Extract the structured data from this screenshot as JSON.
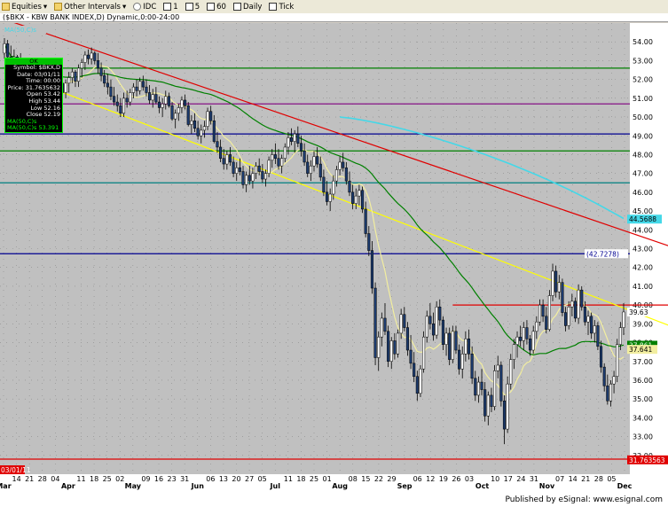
{
  "toolbar": {
    "equities": "Equities",
    "other_intervals": "Other Intervals",
    "idc": "IDC",
    "i1": "1",
    "i5": "5",
    "i60": "60",
    "daily": "Daily",
    "tick": "Tick"
  },
  "title_line": "($BKX - KBW BANK INDEX,D) Dynamic,0:00-24:00",
  "legend_tag": "MA(50,C)s",
  "info_box": {
    "header": "OK",
    "symbol": "Symbol: $BKX,D",
    "date": "Date: 03/01/11",
    "time": "Time: 00:00",
    "price": "Price: 31.7635632",
    "open": "Open 53.42",
    "high": "High 53.44",
    "low": "Low 52.16",
    "close": "Close 52.19",
    "ma_label": "MA(50,C)s",
    "ma_value": "MA(50,C)s 53.391"
  },
  "footer": "Published by eSignal: www.esignal.com",
  "colors": {
    "bg": "#c0c0c0",
    "up": "#ffffff",
    "down": "#1c3b6e",
    "ma_green": "#008000",
    "ma_yellow": "#f2eea0",
    "ma_cyan": "#44d8e8",
    "trend_red": "#e00000",
    "trend_yellow": "#ffff00",
    "level_blue": "#000090"
  },
  "chart_data": {
    "type": "candlestick",
    "ylim": [
      31,
      55
    ],
    "y_ticks": [
      "32.00",
      "33.00",
      "34.00",
      "35.00",
      "36.00",
      "37.00",
      "38.00",
      "39.00",
      "40.00",
      "41.00",
      "42.00",
      "43.00",
      "44.00",
      "45.00",
      "46.00",
      "47.00",
      "48.00",
      "49.00",
      "50.00",
      "51.00",
      "52.00",
      "53.00",
      "54.00"
    ],
    "x_labels": [
      "Mar",
      "14",
      "21",
      "28",
      "04",
      "Apr",
      "11",
      "18",
      "25",
      "02",
      "May",
      "09",
      "16",
      "23",
      "31",
      "Jun",
      "06",
      "13",
      "20",
      "27",
      "05",
      "Jul",
      "11",
      "18",
      "25",
      "01",
      "Aug",
      "08",
      "15",
      "22",
      "29",
      "Sep",
      "06",
      "12",
      "19",
      "26",
      "03",
      "Oct",
      "10",
      "17",
      "24",
      "31",
      "Nov",
      "07",
      "14",
      "21",
      "28",
      "05",
      "Dec"
    ],
    "month_labels": [
      "Mar",
      "Apr",
      "May",
      "Jun",
      "Jul",
      "Aug",
      "Sep",
      "Oct",
      "Nov",
      "Dec"
    ],
    "left_date_label": "03/01/11",
    "price_tags": [
      {
        "value": "44.5688",
        "color": "#44d8e8"
      },
      {
        "value": "(42.7278)",
        "color": "#000090"
      },
      {
        "value": "39.63",
        "color": "#ffffff"
      },
      {
        "value": "37.861",
        "color": "#008000"
      },
      {
        "value": "37.641",
        "color": "#f2eea0"
      },
      {
        "value": "31.763563",
        "color": "#e00000"
      }
    ],
    "horizontal_levels": [
      {
        "value": 52.6,
        "color": "#008000"
      },
      {
        "value": 50.7,
        "color": "#800080"
      },
      {
        "value": 49.1,
        "color": "#000090"
      },
      {
        "value": 48.2,
        "color": "#008000"
      },
      {
        "value": 46.5,
        "color": "#008080"
      },
      {
        "value": 42.7278,
        "color": "#000090"
      },
      {
        "value": 31.8,
        "color": "#e00000"
      }
    ],
    "red_segment": {
      "value": 40.0,
      "from_index": 139,
      "to_index": 227
    },
    "trendlines": [
      {
        "name": "red",
        "from": [
          0,
          55.2
        ],
        "to": [
          229,
          41.8
        ]
      },
      {
        "name": "yellow",
        "from": [
          0,
          52.5
        ],
        "to": [
          229,
          37.4
        ]
      }
    ],
    "ohlc": [
      [
        53.4,
        54.2,
        53.1,
        53.9
      ],
      [
        53.9,
        54.1,
        52.7,
        53.2
      ],
      [
        53.2,
        53.8,
        52.4,
        52.6
      ],
      [
        52.6,
        53.6,
        52.3,
        53.2
      ],
      [
        53.2,
        53.3,
        52.0,
        52.2
      ],
      [
        52.2,
        53.4,
        51.8,
        52.8
      ],
      [
        52.8,
        53.0,
        51.6,
        51.9
      ],
      [
        51.9,
        52.3,
        51.2,
        51.5
      ],
      [
        51.5,
        52.2,
        51.1,
        51.8
      ],
      [
        51.8,
        52.3,
        51.3,
        51.4
      ],
      [
        51.4,
        52.0,
        51.1,
        51.8
      ],
      [
        51.8,
        52.2,
        51.2,
        51.4
      ],
      [
        51.4,
        52.5,
        51.2,
        52.3
      ],
      [
        52.3,
        52.4,
        51.4,
        51.6
      ],
      [
        51.6,
        52.2,
        51.1,
        52.0
      ],
      [
        52.0,
        52.5,
        51.5,
        51.7
      ],
      [
        51.7,
        52.3,
        51.3,
        52.2
      ],
      [
        52.2,
        52.6,
        51.6,
        51.8
      ],
      [
        51.8,
        52.1,
        51.1,
        51.3
      ],
      [
        51.3,
        52.0,
        51.0,
        51.8
      ],
      [
        51.8,
        52.4,
        51.3,
        52.1
      ],
      [
        52.1,
        52.6,
        51.8,
        52.4
      ],
      [
        52.4,
        52.5,
        51.6,
        51.9
      ],
      [
        51.9,
        52.8,
        51.6,
        52.6
      ],
      [
        52.6,
        53.1,
        52.1,
        52.9
      ],
      [
        52.9,
        53.5,
        52.5,
        53.3
      ],
      [
        53.3,
        53.6,
        52.8,
        53.1
      ],
      [
        53.1,
        53.7,
        52.8,
        53.4
      ],
      [
        53.4,
        53.5,
        52.8,
        53.0
      ],
      [
        53.0,
        53.4,
        52.3,
        52.6
      ],
      [
        52.6,
        52.9,
        51.9,
        52.2
      ],
      [
        52.2,
        52.5,
        51.6,
        51.8
      ],
      [
        51.8,
        52.3,
        51.2,
        51.6
      ],
      [
        51.6,
        52.0,
        50.9,
        51.1
      ],
      [
        51.1,
        51.6,
        50.6,
        50.8
      ],
      [
        50.8,
        51.2,
        50.3,
        50.6
      ],
      [
        50.6,
        51.0,
        50.0,
        50.2
      ],
      [
        50.2,
        51.3,
        50.0,
        51.0
      ],
      [
        51.0,
        51.4,
        50.5,
        50.8
      ],
      [
        50.8,
        51.5,
        50.6,
        51.3
      ],
      [
        51.3,
        51.8,
        51.0,
        51.6
      ],
      [
        51.6,
        52.0,
        51.1,
        51.4
      ],
      [
        51.4,
        52.1,
        51.2,
        51.9
      ],
      [
        51.9,
        52.2,
        51.4,
        51.6
      ],
      [
        51.6,
        52.0,
        51.1,
        51.3
      ],
      [
        51.3,
        51.7,
        50.7,
        50.9
      ],
      [
        50.9,
        51.5,
        50.5,
        51.2
      ],
      [
        51.2,
        51.6,
        50.7,
        50.8
      ],
      [
        50.8,
        51.1,
        50.2,
        50.5
      ],
      [
        50.5,
        51.0,
        50.0,
        50.7
      ],
      [
        50.7,
        51.4,
        50.4,
        51.1
      ],
      [
        51.1,
        51.3,
        50.5,
        50.6
      ],
      [
        50.6,
        50.8,
        49.8,
        49.9
      ],
      [
        49.9,
        50.4,
        49.4,
        50.2
      ],
      [
        50.2,
        50.7,
        49.8,
        50.5
      ],
      [
        50.5,
        51.1,
        50.2,
        50.9
      ],
      [
        50.9,
        51.2,
        50.4,
        50.6
      ],
      [
        50.6,
        50.8,
        49.5,
        49.6
      ],
      [
        49.6,
        50.1,
        49.1,
        49.8
      ],
      [
        49.8,
        50.2,
        49.2,
        49.4
      ],
      [
        49.4,
        49.8,
        48.8,
        49.0
      ],
      [
        49.0,
        49.6,
        48.6,
        49.3
      ],
      [
        49.3,
        49.8,
        48.9,
        49.5
      ],
      [
        49.5,
        50.5,
        49.3,
        50.3
      ],
      [
        50.3,
        50.6,
        49.6,
        49.8
      ],
      [
        49.8,
        50.1,
        48.6,
        48.7
      ],
      [
        48.7,
        49.2,
        48.1,
        48.4
      ],
      [
        48.4,
        48.8,
        47.6,
        47.8
      ],
      [
        47.8,
        48.3,
        47.2,
        47.5
      ],
      [
        47.5,
        48.2,
        47.2,
        48.0
      ],
      [
        48.0,
        48.4,
        47.4,
        47.6
      ],
      [
        47.6,
        47.9,
        46.8,
        47.0
      ],
      [
        47.0,
        47.6,
        46.6,
        47.3
      ],
      [
        47.3,
        47.8,
        46.9,
        47.1
      ],
      [
        47.1,
        47.4,
        46.2,
        46.4
      ],
      [
        46.4,
        47.1,
        46.0,
        46.9
      ],
      [
        46.9,
        47.4,
        46.4,
        46.6
      ],
      [
        46.6,
        47.3,
        46.2,
        47.0
      ],
      [
        47.0,
        47.6,
        46.7,
        47.4
      ],
      [
        47.4,
        47.8,
        46.9,
        47.1
      ],
      [
        47.1,
        47.5,
        46.5,
        46.7
      ],
      [
        46.7,
        47.2,
        46.3,
        47.0
      ],
      [
        47.0,
        47.9,
        46.8,
        47.7
      ],
      [
        47.7,
        48.3,
        47.3,
        48.0
      ],
      [
        48.0,
        48.6,
        47.5,
        47.8
      ],
      [
        47.8,
        48.3,
        47.2,
        47.4
      ],
      [
        47.4,
        48.0,
        47.0,
        47.8
      ],
      [
        47.8,
        48.6,
        47.6,
        48.4
      ],
      [
        48.4,
        49.2,
        48.0,
        48.9
      ],
      [
        48.9,
        49.4,
        48.5,
        48.7
      ],
      [
        48.7,
        49.3,
        48.1,
        49.1
      ],
      [
        49.1,
        49.5,
        48.4,
        48.6
      ],
      [
        48.6,
        49.0,
        47.9,
        48.2
      ],
      [
        48.2,
        48.6,
        47.4,
        47.6
      ],
      [
        47.6,
        48.0,
        46.8,
        47.0
      ],
      [
        47.0,
        47.7,
        46.6,
        47.4
      ],
      [
        47.4,
        48.2,
        47.1,
        47.9
      ],
      [
        47.9,
        48.4,
        47.3,
        47.5
      ],
      [
        47.5,
        47.9,
        46.6,
        46.8
      ],
      [
        46.8,
        47.2,
        45.8,
        46.0
      ],
      [
        46.0,
        46.6,
        45.3,
        45.5
      ],
      [
        45.5,
        46.2,
        45.0,
        45.9
      ],
      [
        45.9,
        46.9,
        45.6,
        46.6
      ],
      [
        46.6,
        47.4,
        46.3,
        47.2
      ],
      [
        47.2,
        47.9,
        46.9,
        47.6
      ],
      [
        47.6,
        48.1,
        47.1,
        47.3
      ],
      [
        47.3,
        47.6,
        46.4,
        46.6
      ],
      [
        46.6,
        47.1,
        45.8,
        46.0
      ],
      [
        46.0,
        46.4,
        45.1,
        45.4
      ],
      [
        45.4,
        46.2,
        45.1,
        45.8
      ],
      [
        45.8,
        46.4,
        45.3,
        46.1
      ],
      [
        46.1,
        46.3,
        44.9,
        45.1
      ],
      [
        45.1,
        45.5,
        43.6,
        43.8
      ],
      [
        43.8,
        44.2,
        42.6,
        42.9
      ],
      [
        42.9,
        43.4,
        40.6,
        40.9
      ],
      [
        40.9,
        41.2,
        36.8,
        37.2
      ],
      [
        37.2,
        38.6,
        36.5,
        38.3
      ],
      [
        38.3,
        39.6,
        37.8,
        39.3
      ],
      [
        39.3,
        40.1,
        38.4,
        38.6
      ],
      [
        38.6,
        38.9,
        36.7,
        37.0
      ],
      [
        37.0,
        38.3,
        36.6,
        38.1
      ],
      [
        38.1,
        38.5,
        37.1,
        37.4
      ],
      [
        37.4,
        38.7,
        37.2,
        38.5
      ],
      [
        38.5,
        39.8,
        38.2,
        39.5
      ],
      [
        39.5,
        39.9,
        38.6,
        38.8
      ],
      [
        38.8,
        39.1,
        37.3,
        37.6
      ],
      [
        37.6,
        38.4,
        36.6,
        36.9
      ],
      [
        36.9,
        37.5,
        35.9,
        36.2
      ],
      [
        36.2,
        36.5,
        34.9,
        35.3
      ],
      [
        35.3,
        36.8,
        35.1,
        36.6
      ],
      [
        36.6,
        38.6,
        36.4,
        38.3
      ],
      [
        38.3,
        39.7,
        38.0,
        39.4
      ],
      [
        39.4,
        40.1,
        38.7,
        39.0
      ],
      [
        39.0,
        39.6,
        38.1,
        38.4
      ],
      [
        38.4,
        40.2,
        38.2,
        39.9
      ],
      [
        39.9,
        40.3,
        38.9,
        39.2
      ],
      [
        39.2,
        39.4,
        37.6,
        37.9
      ],
      [
        37.9,
        38.8,
        37.3,
        38.5
      ],
      [
        38.5,
        38.8,
        36.8,
        37.1
      ],
      [
        37.1,
        38.9,
        36.9,
        38.6
      ],
      [
        38.6,
        38.9,
        37.4,
        37.6
      ],
      [
        37.6,
        37.9,
        36.3,
        36.6
      ],
      [
        36.6,
        37.8,
        36.1,
        37.4
      ],
      [
        37.4,
        38.6,
        37.0,
        38.2
      ],
      [
        38.2,
        38.7,
        37.1,
        37.4
      ],
      [
        37.4,
        37.8,
        35.8,
        36.1
      ],
      [
        36.1,
        36.5,
        34.9,
        35.2
      ],
      [
        35.2,
        36.2,
        34.8,
        35.9
      ],
      [
        35.9,
        36.6,
        35.2,
        35.5
      ],
      [
        35.5,
        35.9,
        33.8,
        34.1
      ],
      [
        34.1,
        35.4,
        33.6,
        35.2
      ],
      [
        35.2,
        35.6,
        34.3,
        34.6
      ],
      [
        34.6,
        36.8,
        34.4,
        36.5
      ],
      [
        36.5,
        37.3,
        36.1,
        36.8
      ],
      [
        36.8,
        37.0,
        34.6,
        34.9
      ],
      [
        34.9,
        35.2,
        32.6,
        33.4
      ],
      [
        33.4,
        36.2,
        33.2,
        35.8
      ],
      [
        35.8,
        37.4,
        35.5,
        37.1
      ],
      [
        37.1,
        38.2,
        36.6,
        37.9
      ],
      [
        37.9,
        38.6,
        37.2,
        38.3
      ],
      [
        38.3,
        38.9,
        37.8,
        38.1
      ],
      [
        38.1,
        39.1,
        37.6,
        38.8
      ],
      [
        38.8,
        39.2,
        37.9,
        38.2
      ],
      [
        38.2,
        38.4,
        37.3,
        37.6
      ],
      [
        37.6,
        38.9,
        37.4,
        38.6
      ],
      [
        38.6,
        39.4,
        38.2,
        39.1
      ],
      [
        39.1,
        40.3,
        38.9,
        40.0
      ],
      [
        40.0,
        40.3,
        39.1,
        39.4
      ],
      [
        39.4,
        39.9,
        38.5,
        38.7
      ],
      [
        38.7,
        40.8,
        38.6,
        40.5
      ],
      [
        40.5,
        42.2,
        40.2,
        41.8
      ],
      [
        41.8,
        42.1,
        40.4,
        40.7
      ],
      [
        40.7,
        41.6,
        40.3,
        41.2
      ],
      [
        41.2,
        41.4,
        39.4,
        39.6
      ],
      [
        39.6,
        39.9,
        38.6,
        38.9
      ],
      [
        38.9,
        40.2,
        38.7,
        39.9
      ],
      [
        39.9,
        40.6,
        39.4,
        40.2
      ],
      [
        40.2,
        40.4,
        39.1,
        39.3
      ],
      [
        39.3,
        41.1,
        39.0,
        40.8
      ],
      [
        40.8,
        41.0,
        39.7,
        39.9
      ],
      [
        39.9,
        40.2,
        38.9,
        39.1
      ],
      [
        39.1,
        39.7,
        38.4,
        39.4
      ],
      [
        39.4,
        39.6,
        38.2,
        38.5
      ],
      [
        38.5,
        39.2,
        38.0,
        38.9
      ],
      [
        38.9,
        39.1,
        37.6,
        37.8
      ],
      [
        37.8,
        38.1,
        36.4,
        36.7
      ],
      [
        36.7,
        36.9,
        35.4,
        35.7
      ],
      [
        35.7,
        36.3,
        34.7,
        34.9
      ],
      [
        34.9,
        36.0,
        34.6,
        35.8
      ],
      [
        35.8,
        36.5,
        35.3,
        36.2
      ],
      [
        36.2,
        38.2,
        35.9,
        37.9
      ],
      [
        37.9,
        39.1,
        37.6,
        38.8
      ],
      [
        38.8,
        40.1,
        38.4,
        39.63
      ]
    ]
  }
}
